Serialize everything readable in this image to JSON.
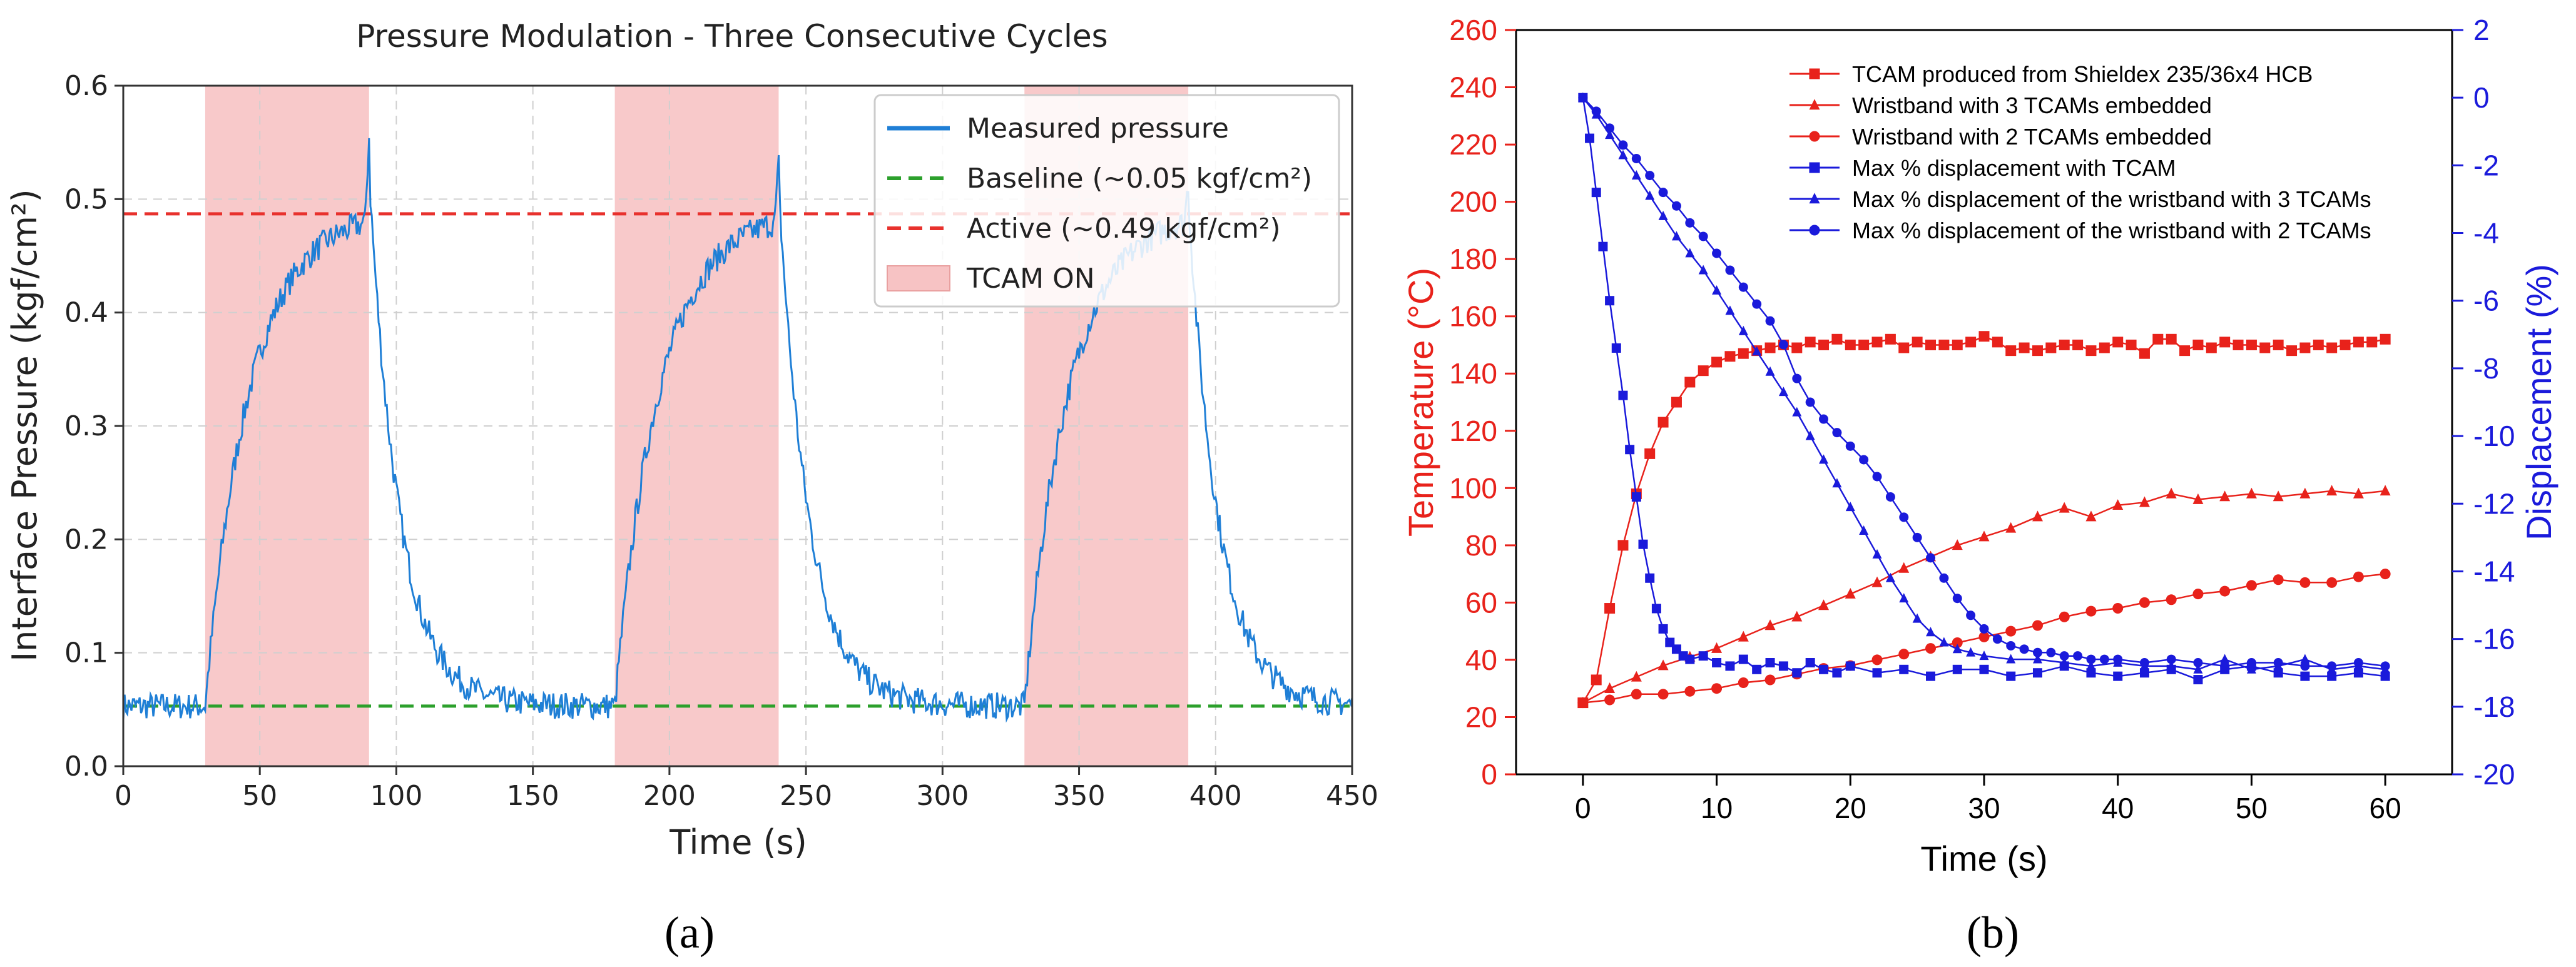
{
  "chart_data": [
    {
      "panel_label": "(a)",
      "type": "line",
      "title": "Pressure Modulation - Three Consecutive Cycles",
      "xlabel": "Time (s)",
      "ylabel": "Interface Pressure (kgf/cm²)",
      "xlim": [
        0,
        450
      ],
      "ylim": [
        0,
        0.6
      ],
      "xticks": [
        0,
        50,
        100,
        150,
        200,
        250,
        300,
        350,
        400,
        450
      ],
      "yticks": [
        0.0,
        0.1,
        0.2,
        0.3,
        0.4,
        0.5,
        0.6
      ],
      "grid": true,
      "legend_position": "top-right",
      "legend": [
        "Measured pressure",
        "Baseline (~0.05 kgf/cm²)",
        "Active (~0.49 kgf/cm²)",
        "TCAM ON"
      ],
      "colors": {
        "measured": "#1f7fd6",
        "baseline": "#2ca02c",
        "active": "#e8312d",
        "tcam": "#f7c3c4"
      },
      "shaded_intervals": [
        [
          30,
          90
        ],
        [
          180,
          240
        ],
        [
          330,
          390
        ]
      ],
      "baseline": 0.053,
      "active": 0.487,
      "series": [
        {
          "name": "Measured pressure",
          "model": {
            "period": 150,
            "on_duration": 60,
            "start_offset": 30,
            "baseline": 0.053,
            "plateau": 0.49,
            "rise_tau": 16,
            "decay_tau": 11,
            "peaks": [
              0.555,
              0.53,
              0.515
            ],
            "noise": 0.012
          }
        }
      ]
    },
    {
      "panel_label": "(b)",
      "type": "line",
      "xlabel": "Time (s)",
      "ylabel_left": "Temperature (°C)",
      "ylabel_right": "Displacement (%)",
      "xlim": [
        -5,
        65
      ],
      "ylim_left": [
        0,
        260
      ],
      "ylim_right": [
        -20,
        2
      ],
      "xticks": [
        0,
        10,
        20,
        30,
        40,
        50,
        60
      ],
      "yticks_left": [
        0,
        20,
        40,
        60,
        80,
        100,
        120,
        140,
        160,
        180,
        200,
        220,
        240,
        260
      ],
      "yticks_right": [
        -20,
        -18,
        -16,
        -14,
        -12,
        -10,
        -8,
        -6,
        -4,
        -2,
        0,
        2
      ],
      "grid": false,
      "legend_position": "top-right",
      "colors": {
        "temperature": "#e8221b",
        "displacement": "#1a1adb"
      },
      "series": [
        {
          "name": "TCAM produced from Shieldex 235/36x4 HCB",
          "axis": "left",
          "marker": "square",
          "x": [
            0,
            1,
            2,
            3,
            4,
            5,
            6,
            7,
            8,
            9,
            10,
            11,
            12,
            13,
            14,
            15,
            16,
            17,
            18,
            19,
            20,
            21,
            22,
            23,
            24,
            25,
            26,
            27,
            28,
            29,
            30,
            31,
            32,
            33,
            34,
            35,
            36,
            37,
            38,
            39,
            40,
            41,
            42,
            43,
            44,
            45,
            46,
            47,
            48,
            49,
            50,
            51,
            52,
            53,
            54,
            55,
            56,
            57,
            58,
            59,
            60
          ],
          "y": [
            25,
            33,
            58,
            80,
            98,
            112,
            123,
            130,
            137,
            141,
            144,
            146,
            147,
            148,
            149,
            150,
            149,
            151,
            150,
            152,
            150,
            150,
            151,
            152,
            149,
            151,
            150,
            150,
            150,
            151,
            153,
            151,
            148,
            149,
            148,
            149,
            150,
            150,
            148,
            149,
            151,
            150,
            147,
            152,
            152,
            148,
            150,
            149,
            151,
            150,
            150,
            149,
            150,
            148,
            149,
            150,
            149,
            150,
            151,
            151,
            152
          ]
        },
        {
          "name": "Wristband with 3 TCAMs embedded",
          "axis": "left",
          "marker": "triangle",
          "x": [
            0,
            2,
            4,
            6,
            8,
            10,
            12,
            14,
            16,
            18,
            20,
            22,
            24,
            26,
            28,
            30,
            32,
            34,
            36,
            38,
            40,
            42,
            44,
            46,
            48,
            50,
            52,
            54,
            56,
            58,
            60
          ],
          "y": [
            25,
            30,
            34,
            38,
            41,
            44,
            48,
            52,
            55,
            59,
            63,
            67,
            72,
            76,
            80,
            83,
            86,
            90,
            93,
            90,
            94,
            95,
            98,
            96,
            97,
            98,
            97,
            98,
            99,
            98,
            99
          ]
        },
        {
          "name": "Wristband with 2 TCAMs embedded",
          "axis": "left",
          "marker": "circle",
          "x": [
            0,
            2,
            4,
            6,
            8,
            10,
            12,
            14,
            16,
            18,
            20,
            22,
            24,
            26,
            28,
            30,
            32,
            34,
            36,
            38,
            40,
            42,
            44,
            46,
            48,
            50,
            52,
            54,
            56,
            58,
            60
          ],
          "y": [
            25,
            26,
            28,
            28,
            29,
            30,
            32,
            33,
            35,
            37,
            38,
            40,
            42,
            44,
            46,
            48,
            50,
            52,
            55,
            57,
            58,
            60,
            61,
            63,
            64,
            66,
            68,
            67,
            67,
            69,
            70
          ]
        },
        {
          "name": "Max % displacement with TCAM",
          "axis": "right",
          "marker": "square",
          "x": [
            0,
            0.5,
            1,
            1.5,
            2,
            2.5,
            3,
            3.5,
            4,
            4.5,
            5,
            5.5,
            6,
            6.5,
            7,
            7.5,
            8,
            9,
            10,
            11,
            12,
            13,
            14,
            15,
            16,
            17,
            18,
            19,
            20,
            22,
            24,
            26,
            28,
            30,
            32,
            34,
            36,
            38,
            40,
            42,
            44,
            46,
            48,
            50,
            52,
            54,
            56,
            58,
            60
          ],
          "y": [
            0,
            -1.2,
            -2.8,
            -4.4,
            -6.0,
            -7.4,
            -8.8,
            -10.4,
            -11.8,
            -13.2,
            -14.2,
            -15.1,
            -15.7,
            -16.1,
            -16.3,
            -16.5,
            -16.6,
            -16.5,
            -16.7,
            -16.8,
            -16.6,
            -16.9,
            -16.7,
            -16.8,
            -17.0,
            -16.7,
            -16.9,
            -17.0,
            -16.8,
            -17.0,
            -16.9,
            -17.1,
            -16.9,
            -16.9,
            -17.1,
            -17.0,
            -16.8,
            -17.0,
            -17.1,
            -17.0,
            -16.9,
            -17.2,
            -16.9,
            -16.8,
            -17.0,
            -17.1,
            -17.1,
            -17.0,
            -17.1
          ]
        },
        {
          "name": "Max % displacement of the wristband with 3 TCAMs",
          "axis": "right",
          "marker": "triangle",
          "x": [
            0,
            1,
            2,
            3,
            4,
            5,
            6,
            7,
            8,
            9,
            10,
            11,
            12,
            13,
            14,
            15,
            16,
            17,
            18,
            19,
            20,
            21,
            22,
            23,
            24,
            25,
            26,
            27,
            28,
            29,
            30,
            32,
            34,
            36,
            38,
            40,
            42,
            44,
            46,
            48,
            50,
            52,
            54,
            56,
            58,
            60
          ],
          "y": [
            0,
            -0.5,
            -1.1,
            -1.7,
            -2.3,
            -2.9,
            -3.5,
            -4.1,
            -4.6,
            -5.1,
            -5.7,
            -6.3,
            -6.9,
            -7.5,
            -8.1,
            -8.7,
            -9.3,
            -10.0,
            -10.7,
            -11.4,
            -12.1,
            -12.8,
            -13.5,
            -14.2,
            -14.8,
            -15.4,
            -15.8,
            -16.1,
            -16.3,
            -16.4,
            -16.5,
            -16.6,
            -16.6,
            -16.7,
            -16.8,
            -16.7,
            -16.8,
            -16.8,
            -16.9,
            -16.6,
            -16.9,
            -16.8,
            -16.6,
            -16.9,
            -16.8,
            -16.9
          ]
        },
        {
          "name": "Max % displacement of the wristband with 2 TCAMs",
          "axis": "right",
          "marker": "circle",
          "x": [
            0,
            1,
            2,
            3,
            4,
            5,
            6,
            7,
            8,
            9,
            10,
            11,
            12,
            13,
            14,
            15,
            16,
            17,
            18,
            19,
            20,
            21,
            22,
            23,
            24,
            25,
            26,
            27,
            28,
            29,
            30,
            31,
            32,
            33,
            34,
            35,
            36,
            37,
            38,
            39,
            40,
            42,
            44,
            46,
            48,
            50,
            52,
            54,
            56,
            58,
            60
          ],
          "y": [
            0,
            -0.4,
            -0.9,
            -1.4,
            -1.8,
            -2.3,
            -2.8,
            -3.2,
            -3.7,
            -4.1,
            -4.6,
            -5.1,
            -5.6,
            -6.1,
            -6.6,
            -7.3,
            -8.3,
            -9.0,
            -9.5,
            -9.9,
            -10.3,
            -10.7,
            -11.2,
            -11.8,
            -12.4,
            -13.0,
            -13.6,
            -14.2,
            -14.8,
            -15.3,
            -15.7,
            -16.0,
            -16.2,
            -16.3,
            -16.4,
            -16.4,
            -16.5,
            -16.5,
            -16.6,
            -16.6,
            -16.6,
            -16.7,
            -16.6,
            -16.7,
            -16.8,
            -16.7,
            -16.7,
            -16.8,
            -16.8,
            -16.7,
            -16.8
          ]
        }
      ]
    }
  ]
}
